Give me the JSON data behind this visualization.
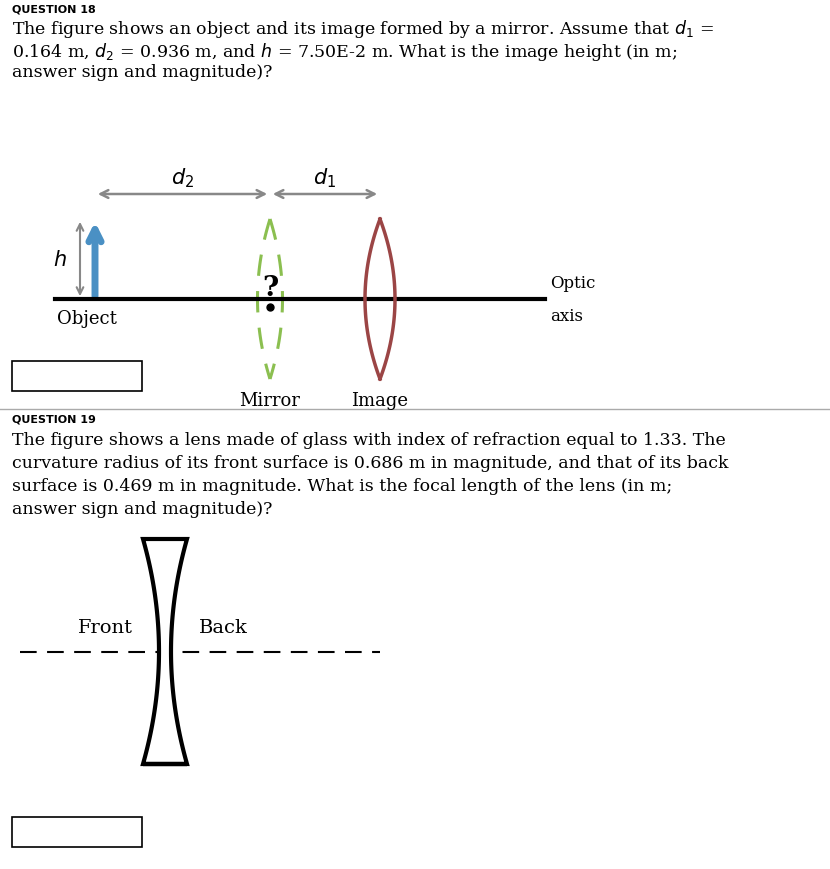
{
  "bg_color": "#ffffff",
  "fig_width": 8.3,
  "fig_height": 8.7,
  "q18_label": "QUESTION 18",
  "q19_label": "QUESTION 19",
  "mirror_color": "#9B4545",
  "object_arrow_color": "#4A90C4",
  "h_arrow_color": "#888888",
  "image_dashed_color": "#8BBF50",
  "text_color": "#000000",
  "sep_color": "#aaaaaa",
  "q18_lines": [
    "The figure shows an object and its image formed by a mirror. Assume that $d_1$ =",
    "0.164 m, $d_2$ = 0.936 m, and $h$ = 7.50E-2 m. What is the image height (in m;",
    "answer sign and magnitude)?"
  ],
  "q19_lines": [
    "The figure shows a lens made of glass with index of refraction equal to 1.33. The",
    "curvature radius of its front surface is 0.686 m in magnitude, and that of its back",
    "surface is 0.469 m in magnitude. What is the focal length of the lens (in m;",
    "answer sign and magnitude)?"
  ]
}
